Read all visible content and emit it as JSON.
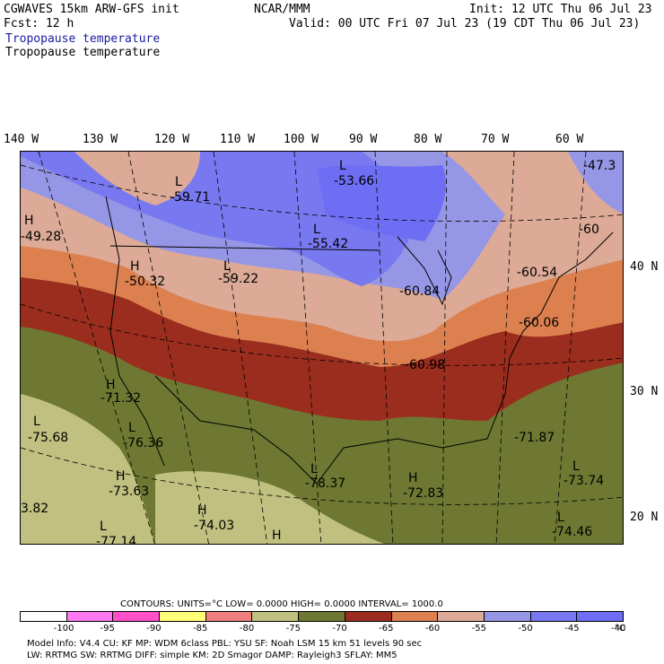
{
  "header": {
    "line1_left": "CGWAVES 15km ARW-GFS init",
    "line1_mid": "NCAR/MMM",
    "line1_right": "Init: 12 UTC Thu 06 Jul 23",
    "line2_left": "Fcst:   12 h",
    "line2_right": "Valid: 00 UTC Fri 07 Jul 23 (19 CDT Thu 06 Jul 23)",
    "field_title_1": "Tropopause temperature",
    "field_title_2": "Tropopause temperature"
  },
  "longitudes": [
    "140 W",
    "130 W",
    "120 W",
    "110 W",
    "100 W",
    "90 W",
    "80 W",
    "70 W",
    "60 W"
  ],
  "latitudes": [
    "40 N",
    "30 N",
    "20 N"
  ],
  "map_labels": [
    {
      "letter": "L",
      "value": "-59.71"
    },
    {
      "letter": "L",
      "value": "-53.66"
    },
    {
      "letter": "",
      "value": "-47.3"
    },
    {
      "letter": "H",
      "value": "-49.28"
    },
    {
      "letter": "H",
      "value": "-50.32"
    },
    {
      "letter": "L",
      "value": "-59.22"
    },
    {
      "letter": "L",
      "value": "-55.42"
    },
    {
      "letter": "",
      "value": "-60"
    },
    {
      "letter": "",
      "value": "-60.84"
    },
    {
      "letter": "",
      "value": "-60.54"
    },
    {
      "letter": "",
      "value": "-60.06"
    },
    {
      "letter": "",
      "value": "-60.98"
    },
    {
      "letter": "H",
      "value": "-71.32"
    },
    {
      "letter": "L",
      "value": "-75.68"
    },
    {
      "letter": "L",
      "value": "-76.36"
    },
    {
      "letter": "H",
      "value": "-73.63"
    },
    {
      "letter": "L",
      "value": "-78.37"
    },
    {
      "letter": "H",
      "value": "-72.83"
    },
    {
      "letter": "H",
      "value": "-74.03"
    },
    {
      "letter": "",
      "value": "-71.87"
    },
    {
      "letter": "L",
      "value": "-73.74"
    },
    {
      "letter": "L",
      "value": "-74.46"
    },
    {
      "letter": "",
      "value": "3.82"
    },
    {
      "letter": "L",
      "value": "-77.14"
    },
    {
      "letter": "H",
      "value": ""
    }
  ],
  "contours": {
    "text": "CONTOURS:  UNITS=°C  LOW=  0.0000          HIGH=  0.0000          INTERVAL=    1000.0"
  },
  "colorbar": {
    "colors": [
      "#ffffff",
      "#ff78f0",
      "#ff50c8",
      "#ffff78",
      "#f08080",
      "#c0c080",
      "#6e7832",
      "#9b2d1e",
      "#dc8050",
      "#dcaa96",
      "#9696e6",
      "#7878f0",
      "#6e6ef5"
    ],
    "labels": [
      "-100",
      "-95",
      "-90",
      "-85",
      "-80",
      "-75",
      "-70",
      "-65",
      "-60",
      "-55",
      "-50",
      "-45",
      "-40",
      "°C"
    ]
  },
  "footer": {
    "line1": "Model Info: V4.4       CU: KF        MP: WDM 6class   PBL: YSU          SF: Noah LSM       15 km    51 levels    90 sec",
    "line2": "                        LW: RRTMG     SW: RRTMG   DIFF: simple KM: 2D Smagor DAMP: Rayleigh3  SFLAY: MM5"
  }
}
